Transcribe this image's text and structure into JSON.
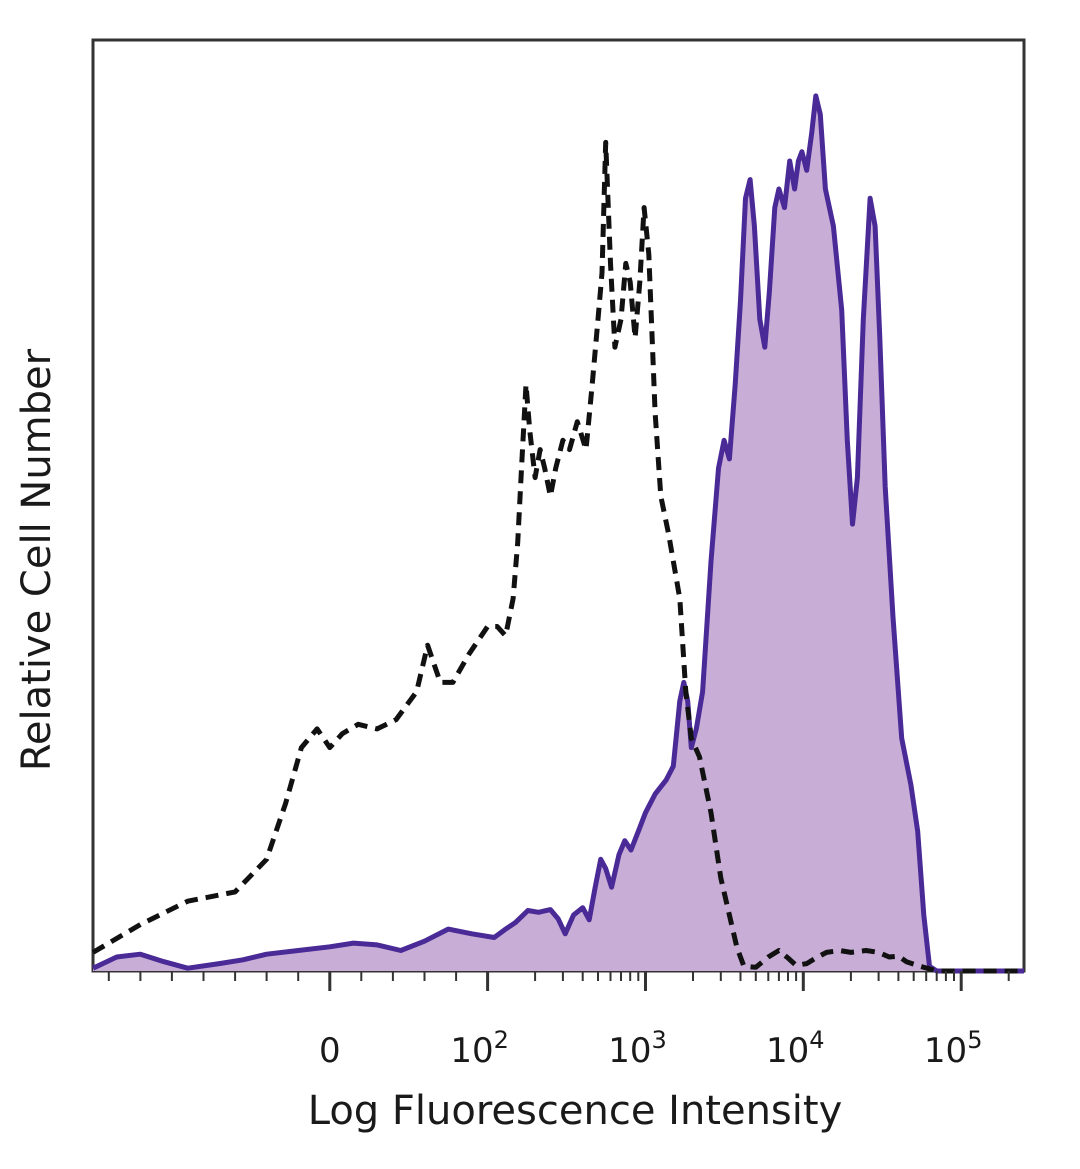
{
  "chart_data": {
    "type": "area",
    "title": "",
    "xlabel": "Log Fluorescence Intensity",
    "ylabel": "Relative Cell Number",
    "x_scale": "biexponential",
    "xlim": [
      -150,
      250000
    ],
    "ylim": [
      0,
      100
    ],
    "grid": false,
    "legend": "none",
    "x_tick_labels": [
      {
        "value": 0,
        "label": "0"
      },
      {
        "value": 100,
        "label": "10",
        "exp": "2"
      },
      {
        "value": 1000,
        "label": "10",
        "exp": "3"
      },
      {
        "value": 10000,
        "label": "10",
        "exp": "4"
      },
      {
        "value": 100000,
        "label": "10",
        "exp": "5"
      }
    ],
    "colors": {
      "stained_line": "#4a2a96",
      "stained_fill": "#c8aed6",
      "control_line": "#111111",
      "frame": "#333333"
    },
    "series": [
      {
        "style": "dashed",
        "fill": false,
        "points": [
          [
            -150,
            2
          ],
          [
            -120,
            5
          ],
          [
            -90,
            7.5
          ],
          [
            -60,
            8.5
          ],
          [
            -40,
            12
          ],
          [
            -28,
            18
          ],
          [
            -18,
            24
          ],
          [
            -8,
            26
          ],
          [
            0,
            24
          ],
          [
            8,
            25.5
          ],
          [
            18,
            26.5
          ],
          [
            30,
            26
          ],
          [
            42,
            27
          ],
          [
            55,
            30
          ],
          [
            62,
            35
          ],
          [
            70,
            31
          ],
          [
            78,
            31
          ],
          [
            88,
            34
          ],
          [
            100,
            37
          ],
          [
            115,
            37
          ],
          [
            130,
            36
          ],
          [
            145,
            40
          ],
          [
            155,
            46
          ],
          [
            165,
            55
          ],
          [
            175,
            63
          ],
          [
            185,
            58
          ],
          [
            200,
            53
          ],
          [
            215,
            56
          ],
          [
            230,
            54
          ],
          [
            250,
            51
          ],
          [
            270,
            54
          ],
          [
            300,
            57
          ],
          [
            330,
            56
          ],
          [
            370,
            59
          ],
          [
            420,
            56
          ],
          [
            460,
            63
          ],
          [
            500,
            70
          ],
          [
            530,
            75
          ],
          [
            560,
            89
          ],
          [
            600,
            76
          ],
          [
            640,
            67
          ],
          [
            700,
            70
          ],
          [
            750,
            76
          ],
          [
            800,
            74
          ],
          [
            860,
            68
          ],
          [
            920,
            74
          ],
          [
            980,
            82
          ],
          [
            1050,
            77
          ],
          [
            1150,
            60
          ],
          [
            1250,
            51
          ],
          [
            1400,
            47
          ],
          [
            1650,
            40
          ],
          [
            1800,
            30
          ],
          [
            1950,
            25
          ],
          [
            2200,
            23
          ],
          [
            2600,
            17
          ],
          [
            3000,
            10
          ],
          [
            3400,
            6
          ],
          [
            3800,
            2.5
          ],
          [
            4200,
            0.5
          ],
          [
            5000,
            0.4
          ],
          [
            6000,
            1.5
          ],
          [
            7000,
            2.2
          ],
          [
            8000,
            1.4
          ],
          [
            9000,
            0.6
          ],
          [
            10500,
            0.8
          ],
          [
            12000,
            1.4
          ],
          [
            14000,
            2
          ],
          [
            17000,
            2.2
          ],
          [
            20000,
            2
          ],
          [
            25000,
            2.2
          ],
          [
            30000,
            2
          ],
          [
            35000,
            1.5
          ],
          [
            40000,
            1.6
          ],
          [
            45000,
            1
          ],
          [
            55000,
            0.5
          ],
          [
            70000,
            0
          ],
          [
            250000,
            0
          ]
        ]
      },
      {
        "style": "solid",
        "fill": true,
        "points": [
          [
            -150,
            0.3
          ],
          [
            -135,
            1.5
          ],
          [
            -120,
            1.8
          ],
          [
            -105,
            1
          ],
          [
            -90,
            0.3
          ],
          [
            -70,
            0.8
          ],
          [
            -55,
            1.2
          ],
          [
            -40,
            1.8
          ],
          [
            -20,
            2.2
          ],
          [
            0,
            2.6
          ],
          [
            15,
            3
          ],
          [
            30,
            2.8
          ],
          [
            45,
            2.2
          ],
          [
            60,
            3.2
          ],
          [
            75,
            4.5
          ],
          [
            90,
            4
          ],
          [
            110,
            3.6
          ],
          [
            130,
            4.5
          ],
          [
            150,
            5.2
          ],
          [
            180,
            6.5
          ],
          [
            210,
            6.3
          ],
          [
            250,
            6.6
          ],
          [
            280,
            5.6
          ],
          [
            310,
            4
          ],
          [
            350,
            6
          ],
          [
            400,
            6.8
          ],
          [
            440,
            5.5
          ],
          [
            480,
            9
          ],
          [
            520,
            12
          ],
          [
            560,
            11
          ],
          [
            610,
            9
          ],
          [
            680,
            12.5
          ],
          [
            740,
            14
          ],
          [
            810,
            13
          ],
          [
            900,
            15
          ],
          [
            1000,
            17
          ],
          [
            1150,
            19
          ],
          [
            1350,
            20.5
          ],
          [
            1500,
            22
          ],
          [
            1650,
            29
          ],
          [
            1750,
            31
          ],
          [
            1850,
            29
          ],
          [
            1950,
            24
          ],
          [
            2100,
            26
          ],
          [
            2300,
            30
          ],
          [
            2600,
            44
          ],
          [
            2900,
            54
          ],
          [
            3150,
            57
          ],
          [
            3400,
            55
          ],
          [
            3700,
            63
          ],
          [
            4000,
            72
          ],
          [
            4300,
            83
          ],
          [
            4600,
            85
          ],
          [
            4900,
            80
          ],
          [
            5300,
            70
          ],
          [
            5700,
            67
          ],
          [
            6100,
            73
          ],
          [
            6600,
            82
          ],
          [
            7000,
            84
          ],
          [
            7600,
            82
          ],
          [
            8200,
            87
          ],
          [
            8800,
            84
          ],
          [
            9300,
            87
          ],
          [
            9800,
            88
          ],
          [
            10500,
            86
          ],
          [
            11300,
            90
          ],
          [
            12000,
            94
          ],
          [
            12800,
            92
          ],
          [
            13800,
            84
          ],
          [
            15500,
            80
          ],
          [
            17500,
            71
          ],
          [
            19000,
            57
          ],
          [
            20500,
            48
          ],
          [
            22000,
            53
          ],
          [
            24000,
            70
          ],
          [
            26500,
            83
          ],
          [
            28500,
            80
          ],
          [
            30500,
            68
          ],
          [
            33000,
            52
          ],
          [
            37000,
            38
          ],
          [
            42000,
            25
          ],
          [
            48000,
            20
          ],
          [
            53000,
            15
          ],
          [
            58000,
            6
          ],
          [
            63000,
            0.5
          ],
          [
            70000,
            0
          ],
          [
            250000,
            0
          ]
        ]
      }
    ]
  }
}
